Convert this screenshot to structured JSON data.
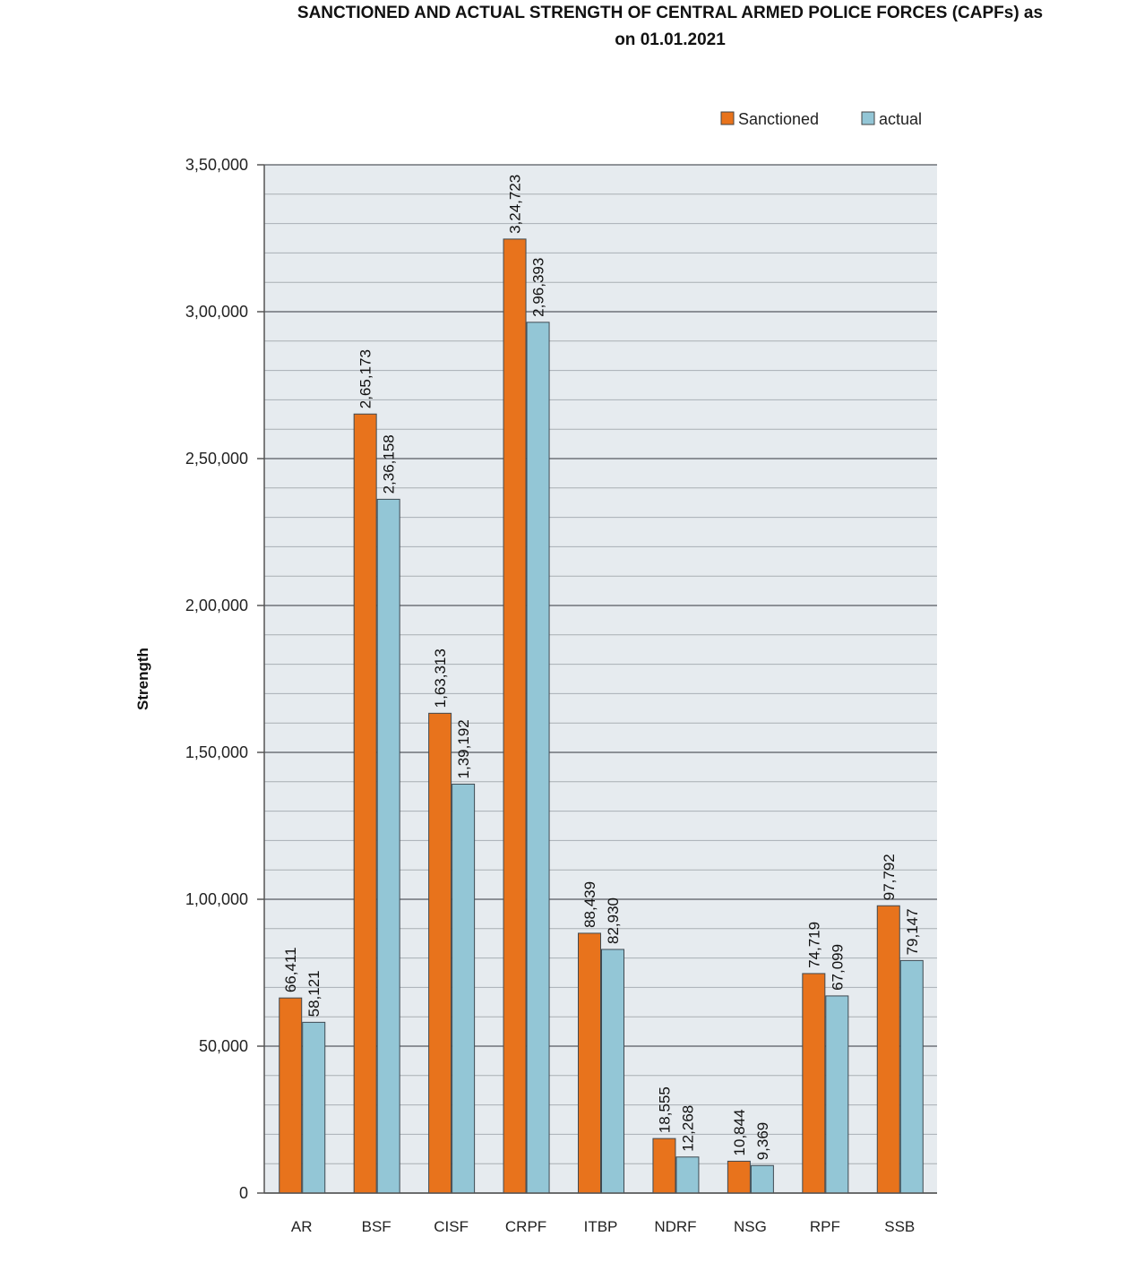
{
  "chart_data": {
    "type": "bar",
    "title": "SANCTIONED AND ACTUAL STRENGTH OF CENTRAL ARMED POLICE FORCES (CAPFs) as on 01.01.2021",
    "title_lines": [
      "SANCTIONED AND ACTUAL STRENGTH OF CENTRAL ARMED POLICE FORCES (CAPFs) as",
      "on 01.01.2021"
    ],
    "xlabel": "",
    "ylabel": "Strength",
    "ylim": [
      0,
      350000
    ],
    "yticks": [
      0,
      50000,
      100000,
      150000,
      200000,
      250000,
      300000,
      350000
    ],
    "ytick_labels": [
      "0",
      "50,000",
      "1,00,000",
      "1,50,000",
      "2,00,000",
      "2,50,000",
      "3,00,000",
      "3,50,000"
    ],
    "grid": true,
    "legend_position": "top-right",
    "categories": [
      "AR",
      "BSF",
      "CISF",
      "CRPF",
      "ITBP",
      "NDRF",
      "NSG",
      "RPF",
      "SSB"
    ],
    "series": [
      {
        "name": "Sanctioned",
        "color": "#E8731C",
        "values": [
          66411,
          265173,
          163313,
          324723,
          88439,
          18555,
          10844,
          74719,
          97792
        ],
        "labels": [
          "66,411",
          "2,65,173",
          "1,63,313",
          "3,24,723",
          "88,439",
          "18,555",
          "10,844",
          "74,719",
          "97,792"
        ]
      },
      {
        "name": "actual",
        "color": "#93C6D6",
        "values": [
          58121,
          236158,
          139192,
          296393,
          82930,
          12268,
          9369,
          67099,
          79147
        ],
        "labels": [
          "58,121",
          "2,36,158",
          "1,39,192",
          "2,96,393",
          "82,930",
          "12,268",
          "9,369",
          "67,099",
          "79,147"
        ]
      }
    ]
  }
}
